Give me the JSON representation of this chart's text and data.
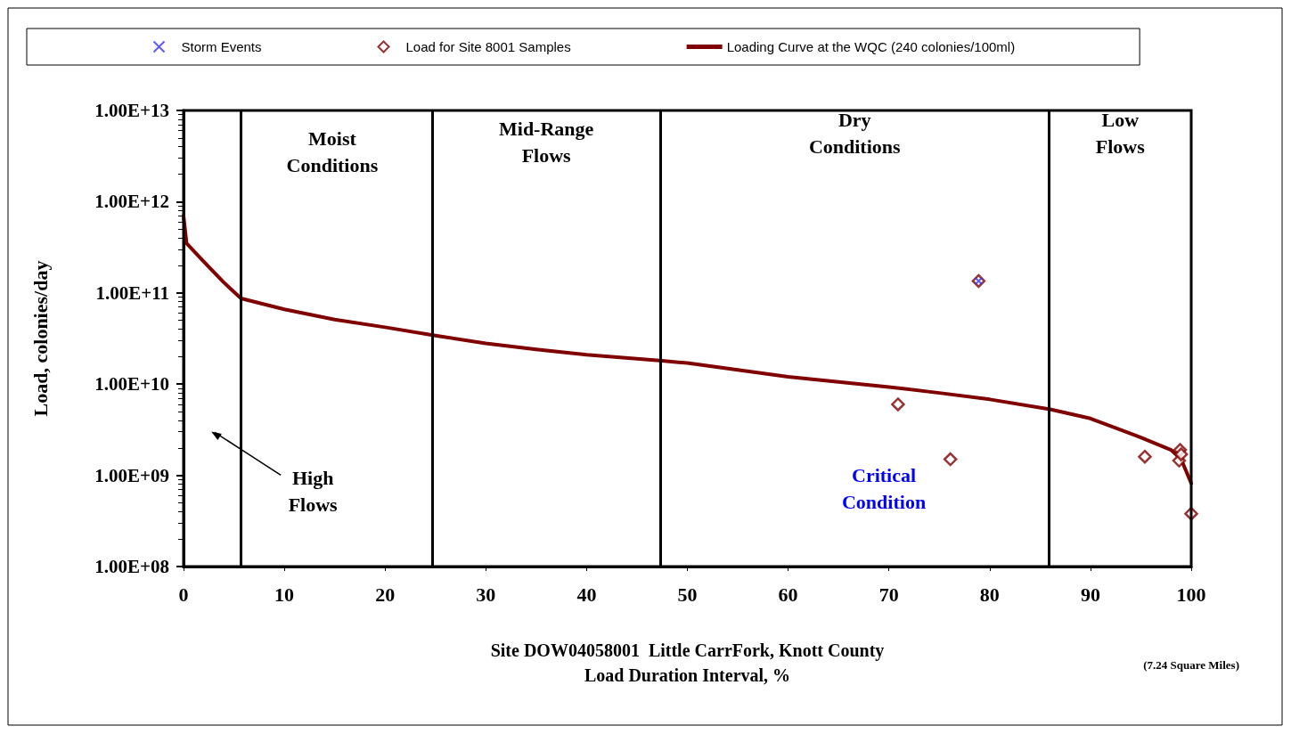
{
  "chart_data": {
    "type": "line",
    "xlabel": "Site DOW04058001  Little CarrFork, Knott County\nLoad Duration Interval, %",
    "ylabel": "Load, colonies/day",
    "xlim": [
      0,
      100
    ],
    "xticks": [
      0,
      10,
      20,
      30,
      40,
      50,
      60,
      70,
      80,
      90,
      100
    ],
    "ylim": [
      100000000,
      10000000000000
    ],
    "yticks": [
      {
        "value": 100000000,
        "label": "1.00E+08"
      },
      {
        "value": 1000000000,
        "label": "1.00E+09"
      },
      {
        "value": 10000000000,
        "label": "1.00E+10"
      },
      {
        "value": 100000000000,
        "label": "1.00E+11"
      },
      {
        "value": 1000000000000,
        "label": "1.00E+12"
      },
      {
        "value": 10000000000000,
        "label": "1.00E+13"
      }
    ],
    "log": "y",
    "grid": false,
    "legend": "top",
    "series": [
      {
        "name": "Storm Events",
        "type": "scatter",
        "marker": "cross",
        "color": "#3333ff",
        "x": [
          78.9
        ],
        "values": [
          135000000000
        ]
      },
      {
        "name": "Load for Site 8001 Samples",
        "type": "scatter",
        "marker": "diamond",
        "color": "#800000",
        "x": [
          70.9,
          76.1,
          78.9,
          95.4,
          98.8,
          98.9,
          99.0,
          100
        ],
        "values": [
          6000000000,
          1500000000,
          135000000000,
          1600000000,
          1450000000,
          1900000000,
          1700000000,
          380000000
        ]
      },
      {
        "name": "Loading Curve at the WQC (240 colonies/100ml)",
        "type": "line",
        "marker": "none",
        "color": "#800000",
        "x": [
          0,
          0.3,
          2,
          4,
          5.7,
          10,
          15,
          20,
          25,
          30,
          35,
          40,
          47.5,
          50,
          60,
          70,
          75,
          80,
          86,
          90,
          95,
          98,
          99,
          100
        ],
        "values": [
          700000000000,
          350000000000,
          220000000000,
          130000000000,
          87000000000,
          66000000000,
          51000000000,
          42000000000,
          34000000000,
          28000000000,
          24000000000,
          21000000000,
          18000000000,
          17000000000,
          12000000000,
          9300000000,
          8000000000,
          6800000000,
          5300000000,
          4200000000,
          2600000000,
          1900000000,
          1500000000,
          820000000
        ]
      }
    ],
    "ref_lines": [
      {
        "axis": "x",
        "value": 5.7,
        "color": "#000000"
      },
      {
        "axis": "x",
        "value": 24.7,
        "color": "#000000"
      },
      {
        "axis": "x",
        "value": 47.3,
        "color": "#000000"
      },
      {
        "axis": "x",
        "value": 85.9,
        "color": "#000000"
      }
    ],
    "annotations": [
      "Moist\nConditions",
      "Mid-Range\nFlows",
      "Dry\nConditions",
      "Low\nFlows",
      "High\nFlows",
      "Critical\nCondition",
      "(7.24 Square Miles)"
    ]
  }
}
